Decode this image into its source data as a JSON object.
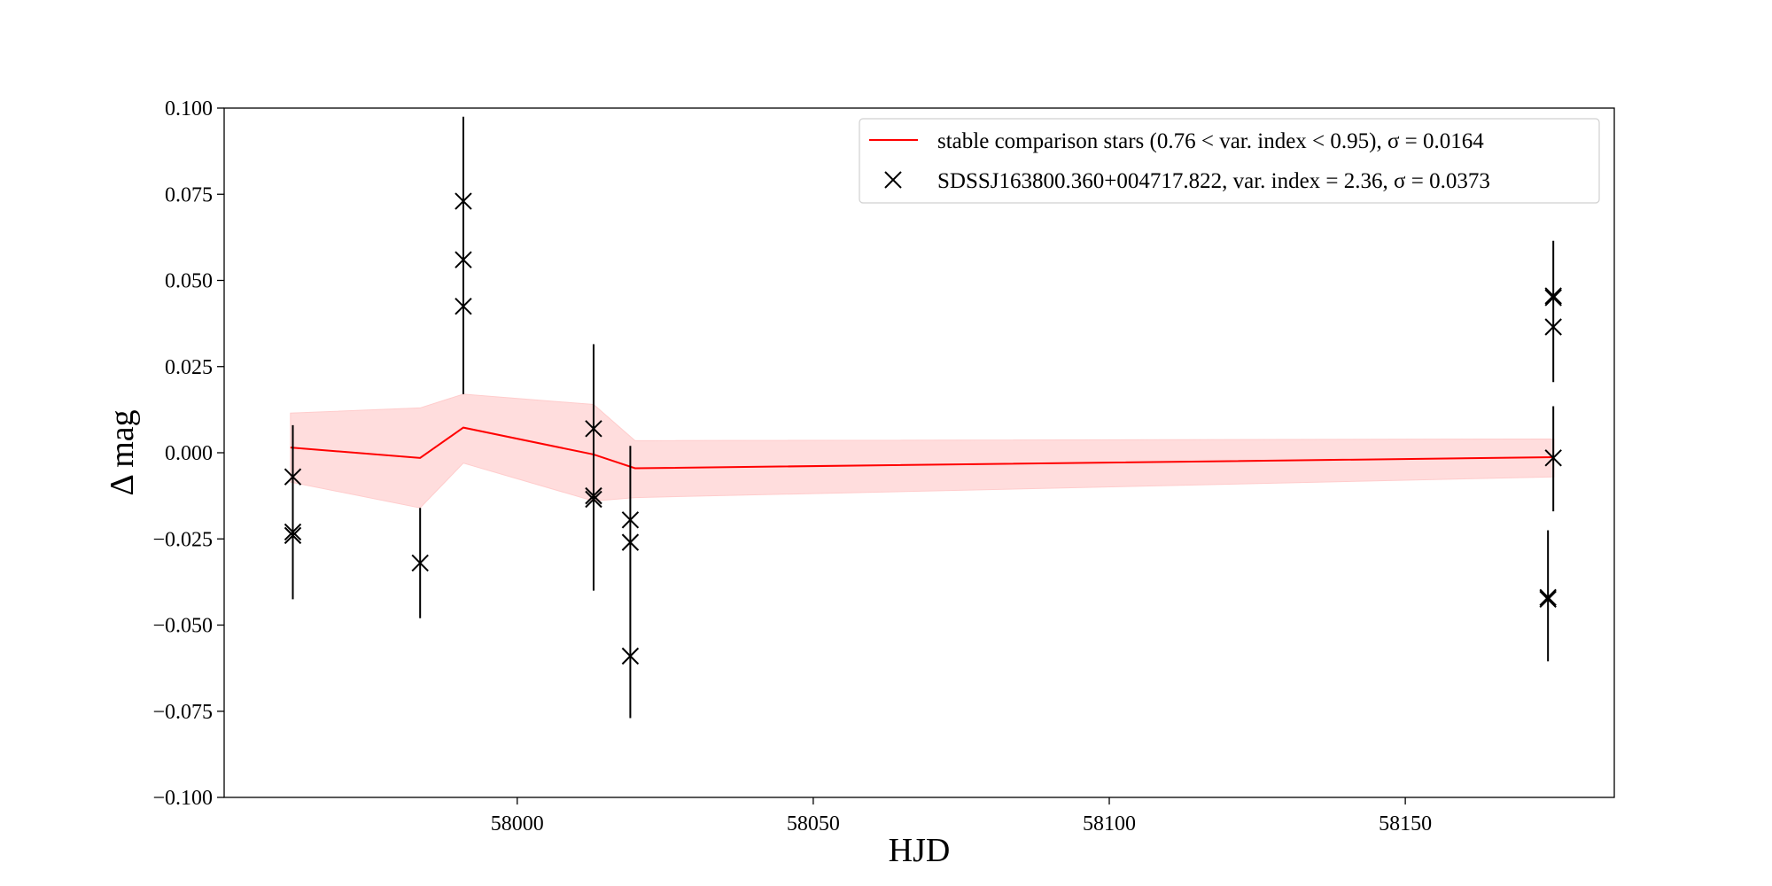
{
  "chart_data": {
    "type": "scatter",
    "title": "",
    "xlabel": "HJD",
    "ylabel": "Δ mag",
    "xlim": [
      57950.5,
      58185.3
    ],
    "ylim": [
      -0.1,
      0.1
    ],
    "x_ticks": [
      58000,
      58050,
      58100,
      58150
    ],
    "x_tick_labels": [
      "58000",
      "58050",
      "58100",
      "58150"
    ],
    "y_ticks": [
      0.1,
      0.075,
      0.05,
      0.025,
      0.0,
      -0.025,
      -0.05,
      -0.075,
      -0.1
    ],
    "y_tick_labels": [
      "0.100",
      "0.075",
      "0.050",
      "0.025",
      "0.000",
      "−0.025",
      "−0.050",
      "−0.075",
      "−0.100"
    ],
    "grid": false,
    "legend_position": "upper-right",
    "series": [
      {
        "name": "stable comparison stars (0.76 < var. index < 0.95), σ = 0.0164",
        "kind": "line",
        "color": "#ff0000",
        "band_color": "#ffdddd",
        "x": [
          57961.7,
          57983.6,
          57990.9,
          58012.9,
          58019.9,
          58175.1
        ],
        "y": [
          0.0015,
          -0.0015,
          0.0073,
          -0.0005,
          -0.0045,
          -0.0013
        ],
        "band_lower": [
          -0.0085,
          -0.016,
          -0.003,
          -0.014,
          -0.013,
          -0.007
        ],
        "band_upper": [
          0.0115,
          0.013,
          0.017,
          0.014,
          0.0035,
          0.004
        ]
      },
      {
        "name": "SDSSJ163800.360+004717.822, var. index = 2.36, σ = 0.0373",
        "kind": "errorbar",
        "color": "#000000",
        "marker": "x",
        "points": [
          {
            "x": 57962.1,
            "y": -0.007
          },
          {
            "x": 57962.1,
            "y": -0.024
          },
          {
            "x": 57962.1,
            "y": -0.023
          },
          {
            "x": 57983.6,
            "y": -0.032
          },
          {
            "x": 57990.9,
            "y": 0.073
          },
          {
            "x": 57990.9,
            "y": 0.056
          },
          {
            "x": 57990.9,
            "y": 0.0425
          },
          {
            "x": 58012.9,
            "y": 0.007
          },
          {
            "x": 58012.9,
            "y": -0.0125
          },
          {
            "x": 58012.9,
            "y": -0.0135
          },
          {
            "x": 58019.1,
            "y": -0.0195
          },
          {
            "x": 58019.1,
            "y": -0.026
          },
          {
            "x": 58019.1,
            "y": -0.059
          },
          {
            "x": 58175.0,
            "y": 0.0455
          },
          {
            "x": 58175.0,
            "y": 0.045
          },
          {
            "x": 58175.0,
            "y": 0.0365
          },
          {
            "x": 58175.0,
            "y": -0.0015
          },
          {
            "x": 58174.1,
            "y": -0.042
          },
          {
            "x": 58174.1,
            "y": -0.0425
          }
        ],
        "error_bars": [
          {
            "x": 57962.1,
            "low": -0.0425,
            "high": 0.008
          },
          {
            "x": 57983.6,
            "low": -0.048,
            "high": -0.016
          },
          {
            "x": 57990.9,
            "low": 0.017,
            "high": 0.0975
          },
          {
            "x": 58012.9,
            "low": -0.04,
            "high": 0.0315
          },
          {
            "x": 58019.1,
            "low": -0.077,
            "high": 0.002
          },
          {
            "x": 58175.0,
            "low": 0.0205,
            "high": 0.0615
          },
          {
            "x": 58175.0,
            "low": -0.017,
            "high": 0.0135
          },
          {
            "x": 58174.1,
            "low": -0.0605,
            "high": -0.0225
          }
        ]
      }
    ]
  }
}
